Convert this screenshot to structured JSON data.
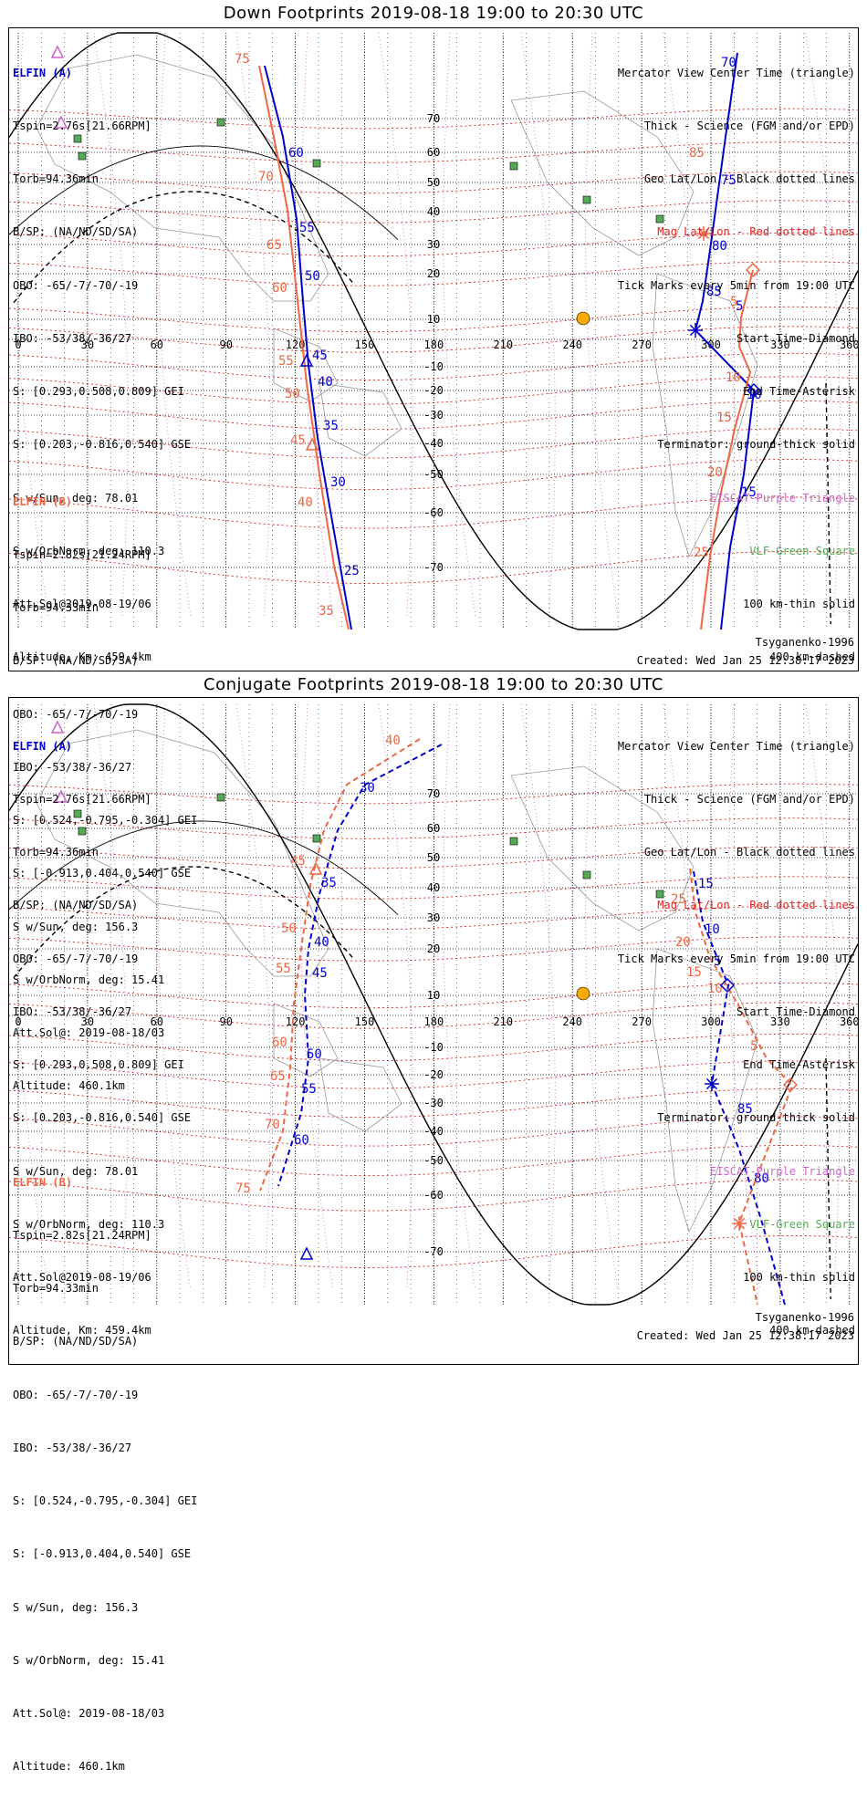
{
  "colors": {
    "elfin_a": "#0000cc",
    "elfin_b": "#ee6644",
    "geo_grid": "#000000",
    "mag_grid": "#dd2222",
    "purple": "#cc66cc",
    "vlf": "#66aa66",
    "sun": "#ffaa00",
    "station": "#55aa55"
  },
  "info_a": {
    "header": "ELFIN (A)",
    "lines": [
      "Tspin=2.76s[21.66RPM]",
      "Torb=94.36min",
      "B/SP: (NA/ND/SD/SA)",
      "OBO: -65/-7/-70/-19",
      "IBO: -53/38/-36/27",
      "S: [0.293,0.508,0.809] GEI",
      "S: [0.203,-0.816,0.540] GSE",
      "S w/Sun, deg: 78.01",
      "S w/OrbNorm, deg: 110.3",
      "Att.Sol@2019-08-19/06",
      "Altitude, Km: 459.4km"
    ]
  },
  "info_b": {
    "header": "ELFIN (B)",
    "lines": [
      "Tspin=2.82s[21.24RPM]",
      "Torb=94.33min",
      "B/SP: (NA/ND/SD/SA)",
      "OBO: -65/-7/-70/-19",
      "IBO: -53/38/-36/27",
      "S: [0.524,-0.795,-0.304] GEI",
      "S: [-0.913,0.404,0.540] GSE",
      "S w/Sun, deg: 156.3",
      "S w/OrbNorm, deg: 15.41",
      "Att.Sol@: 2019-08-18/03",
      "Altitude: 460.1km"
    ]
  },
  "legend": [
    {
      "text": "Mercator View Center Time (triangle)",
      "color": "#000000"
    },
    {
      "text": "Thick - Science (FGM and/or EPD)",
      "color": "#000000"
    },
    {
      "text": "Geo Lat/Lon - Black dotted lines",
      "color": "#000000"
    },
    {
      "text": "Mag Lat/Lon - Red dotted lines",
      "color": "#dd2222"
    },
    {
      "text": "Tick Marks every 5min from 19:00 UTC",
      "color": "#000000"
    },
    {
      "text": "Start Time-Diamond",
      "color": "#000000"
    },
    {
      "text": "End Time-Asterisk",
      "color": "#000000"
    },
    {
      "text": "Terminator: ground-thick solid",
      "color": "#000000"
    },
    {
      "text": "EISCAT-Purple Triangle",
      "color": "#cc66cc"
    },
    {
      "text": "VLF-Green Square",
      "color": "#55aa55"
    },
    {
      "text": "100 km-thin solid",
      "color": "#000000"
    },
    {
      "text": "400 km-dashed",
      "color": "#000000"
    }
  ],
  "footer": {
    "model": "Tsyganenko-1996",
    "created": "Created: Wed Jan 25 12:38:17 2023"
  },
  "lon_ticks": [
    "0",
    "30",
    "60",
    "90",
    "120",
    "150",
    "180",
    "210",
    "240",
    "270",
    "300",
    "330",
    "360"
  ],
  "lat_ticks": [
    "70",
    "60",
    "50",
    "40",
    "30",
    "20",
    "10",
    "-10",
    "-20",
    "-30",
    "-40",
    "-50",
    "-60",
    "-70"
  ],
  "panel1": {
    "title": "Down Footprints 2019-08-18 19:00 to 20:30 UTC",
    "track_a1": {
      "labels": [
        "60",
        "55",
        "50",
        "45",
        "40",
        "35",
        "30",
        "25"
      ]
    },
    "track_b1": {
      "labels": [
        "75",
        "70",
        "65",
        "60",
        "55",
        "50",
        "45",
        "40",
        "35"
      ]
    },
    "track_a2": {
      "labels": [
        "70",
        "75",
        "80",
        "85",
        "5",
        "10",
        "15"
      ]
    },
    "track_b2": {
      "labels": [
        "85",
        "5",
        "10",
        "15",
        "20",
        "25"
      ]
    }
  },
  "panel2": {
    "title": "Conjugate Footprints 2019-08-18 19:00 to 20:30 UTC",
    "track_a1": {
      "labels": [
        "30",
        "35",
        "40",
        "45",
        "50",
        "55",
        "60"
      ]
    },
    "track_b1": {
      "labels": [
        "40",
        "45",
        "50",
        "55",
        "60",
        "65",
        "70",
        "75"
      ]
    },
    "track_a2": {
      "labels": [
        "15",
        "10",
        "5",
        "85",
        "80"
      ]
    },
    "track_b2": {
      "labels": [
        "25",
        "20",
        "15",
        "10",
        "5"
      ]
    }
  }
}
